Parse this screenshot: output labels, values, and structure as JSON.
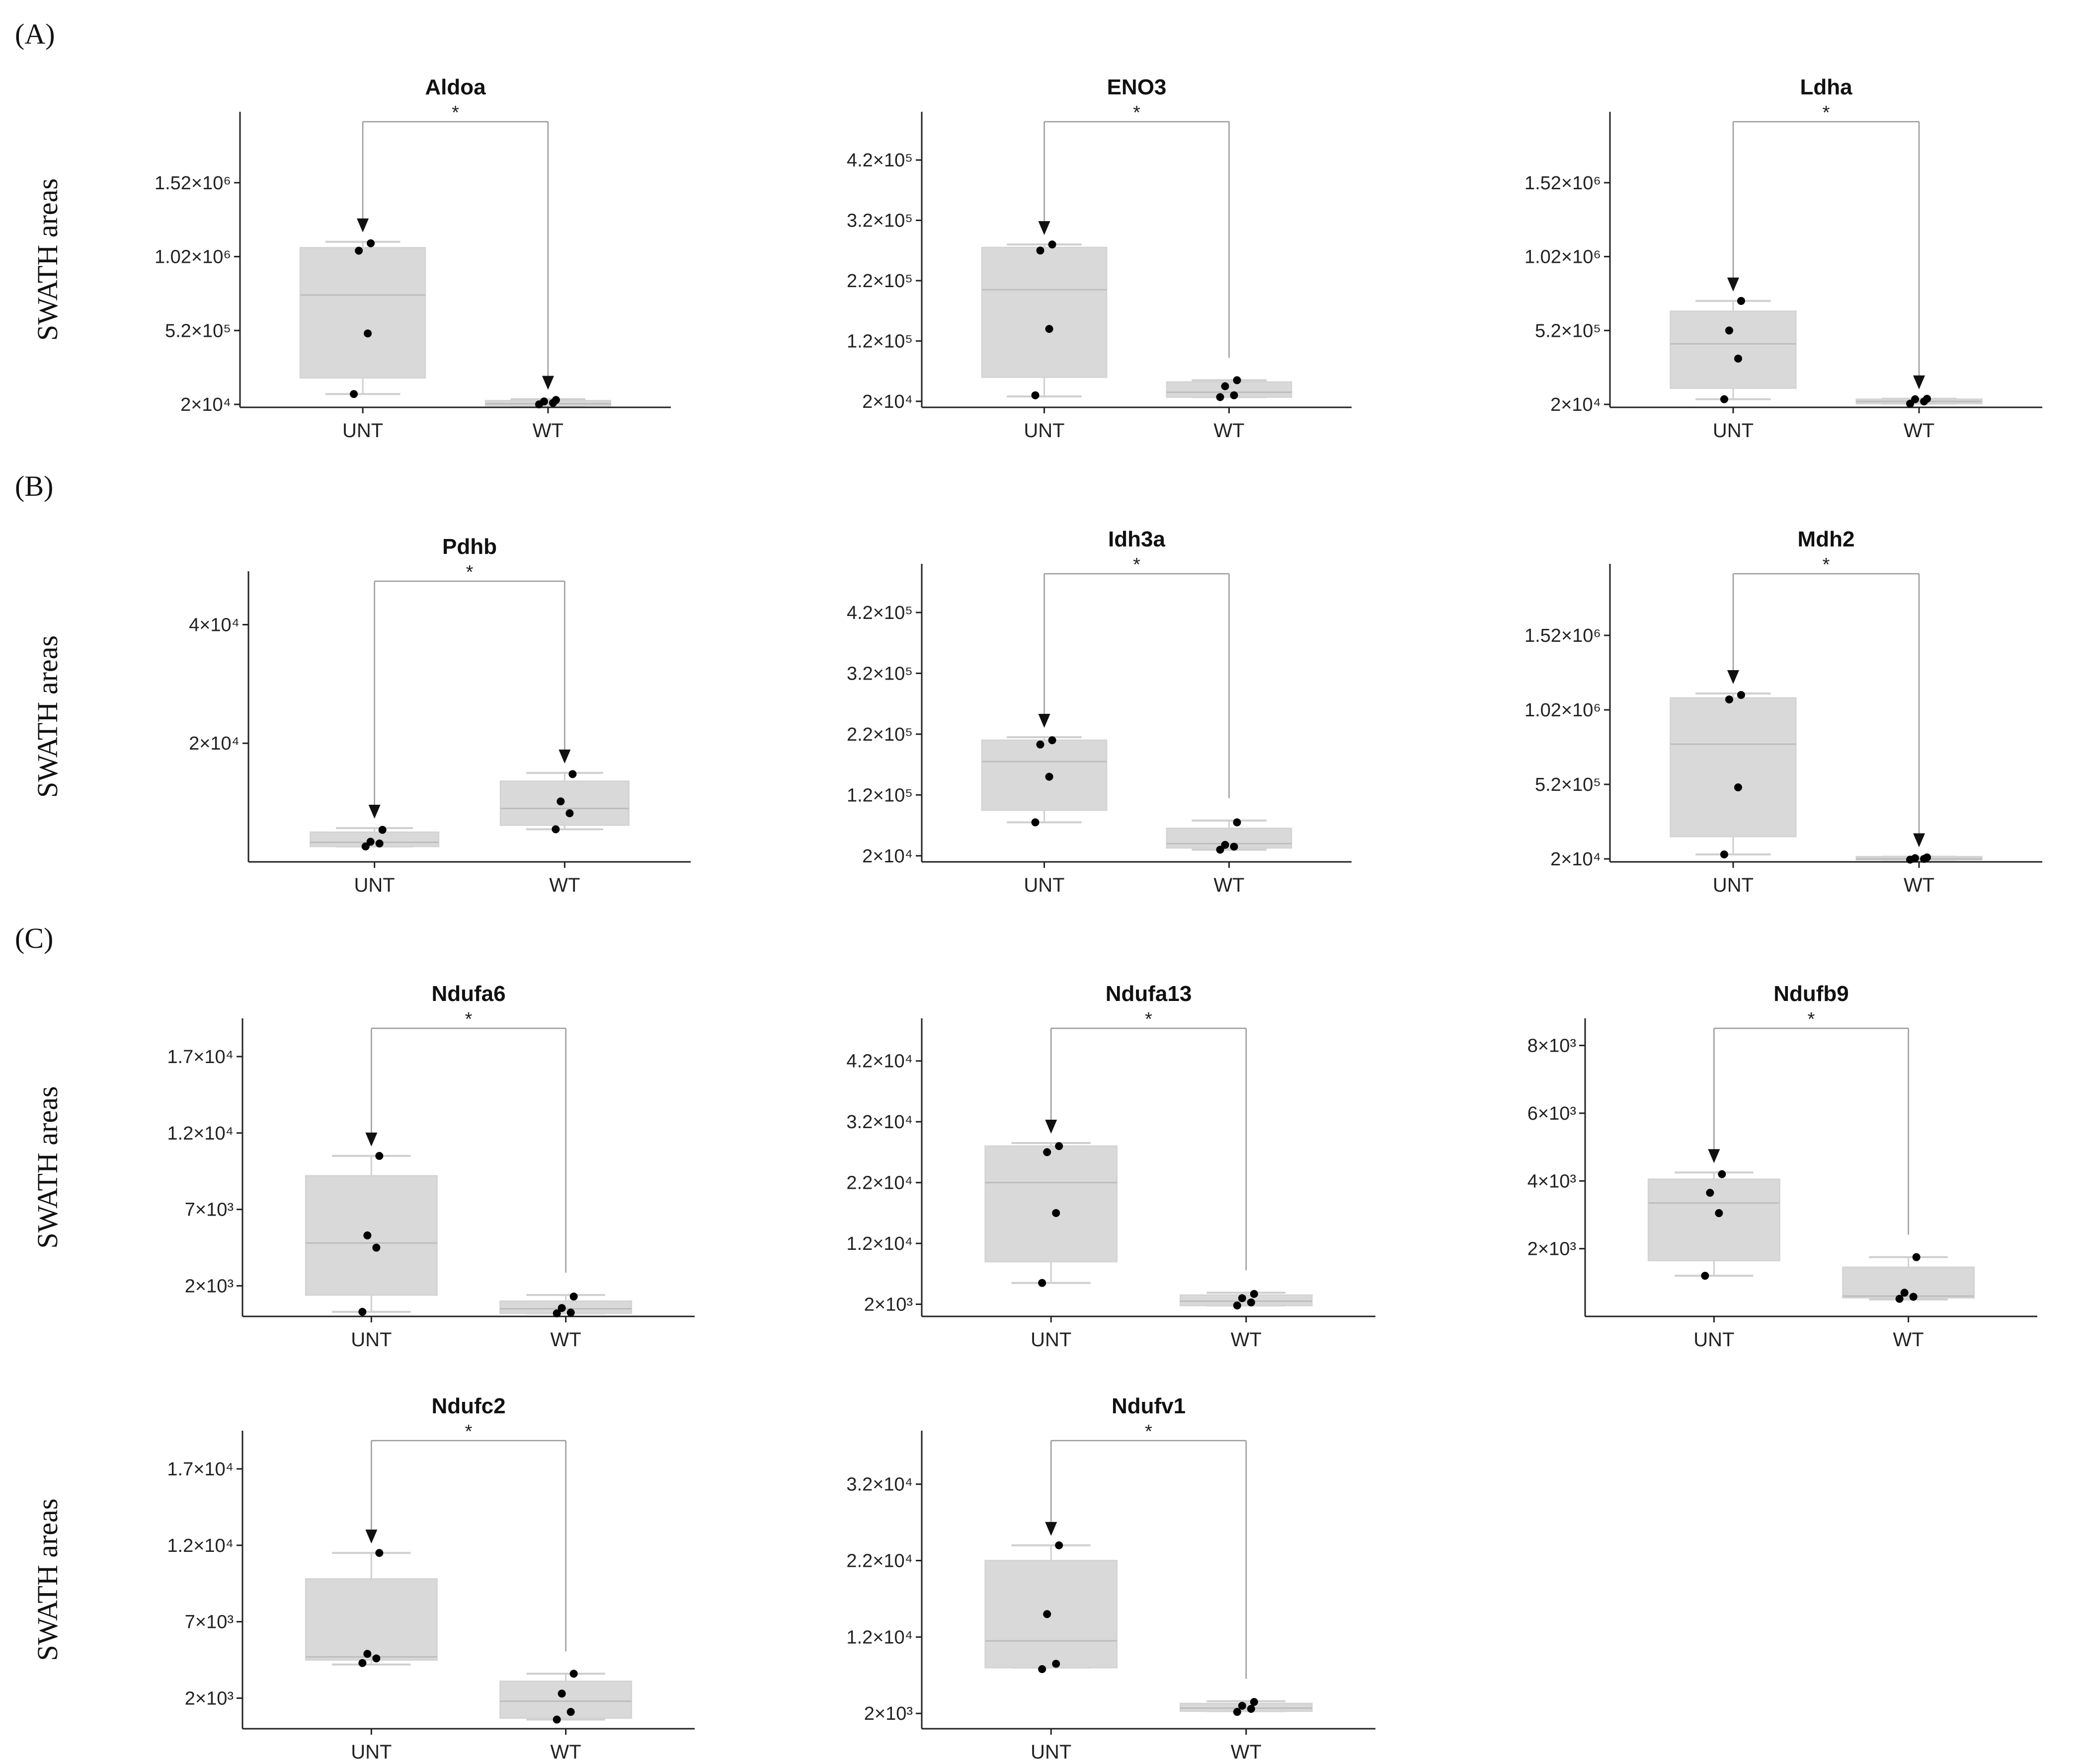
{
  "panel_labels": [
    "(A)",
    "(B)",
    "(C)"
  ],
  "colors": {
    "box_fill": "#d9d9d9",
    "box_edge": "#d4d4d4",
    "median": "#bdbdbd",
    "whisker": "#cfcfcf",
    "point": "#000000",
    "axis": "#222222",
    "bracket": "#9a9a9a"
  },
  "chart_data": [
    {
      "type": "box",
      "title": "Aldoa",
      "ylabel": "SWATH areas",
      "categories": [
        "UNT",
        "WT"
      ],
      "yticks": [
        {
          "value": 20000,
          "label": "2×10⁴"
        },
        {
          "value": 520000,
          "label": "5.2×10⁵"
        },
        {
          "value": 1020000,
          "label": "1.02×10⁶"
        },
        {
          "value": 1520000,
          "label": "1.52×10⁶"
        }
      ],
      "ylim": [
        0,
        2000000
      ],
      "groups": [
        {
          "name": "UNT",
          "q1": 200000,
          "median": 760000,
          "q3": 1080000,
          "whisker_low": 90000,
          "whisker_high": 1120000,
          "points": [
            90000,
            500000,
            1060000,
            1110000
          ]
        },
        {
          "name": "WT",
          "q1": 12000,
          "median": 25000,
          "q3": 45000,
          "whisker_low": 12000,
          "whisker_high": 55000,
          "points": [
            20000,
            30000,
            40000,
            50000
          ]
        }
      ],
      "significance": "*",
      "arrows": [
        "UNT",
        "WT"
      ]
    },
    {
      "type": "box",
      "title": "ENO3",
      "ylabel": "",
      "categories": [
        "UNT",
        "WT"
      ],
      "yticks": [
        {
          "value": 20000,
          "label": "2×10⁴"
        },
        {
          "value": 120000,
          "label": "1.2×10⁵"
        },
        {
          "value": 220000,
          "label": "2.2×10⁵"
        },
        {
          "value": 320000,
          "label": "3.2×10⁵"
        },
        {
          "value": 420000,
          "label": "4.2×10⁵"
        }
      ],
      "ylim": [
        10000,
        500000
      ],
      "groups": [
        {
          "name": "UNT",
          "q1": 60000,
          "median": 205000,
          "q3": 275000,
          "whisker_low": 28000,
          "whisker_high": 280000,
          "points": [
            30000,
            140000,
            270000,
            280000
          ]
        },
        {
          "name": "WT",
          "q1": 27000,
          "median": 35000,
          "q3": 52000,
          "whisker_low": 27000,
          "whisker_high": 55000,
          "points": [
            27000,
            30000,
            45000,
            55000
          ]
        }
      ],
      "significance": "*",
      "arrows": [
        "UNT"
      ]
    },
    {
      "type": "box",
      "title": "Ldha",
      "ylabel": "",
      "categories": [
        "UNT",
        "WT"
      ],
      "yticks": [
        {
          "value": 20000,
          "label": "2×10⁴"
        },
        {
          "value": 520000,
          "label": "5.2×10⁵"
        },
        {
          "value": 1020000,
          "label": "1.02×10⁶"
        },
        {
          "value": 1520000,
          "label": "1.52×10⁶"
        }
      ],
      "ylim": [
        0,
        2000000
      ],
      "groups": [
        {
          "name": "UNT",
          "q1": 130000,
          "median": 430000,
          "q3": 650000,
          "whisker_low": 55000,
          "whisker_high": 720000,
          "points": [
            55000,
            330000,
            520000,
            720000
          ]
        },
        {
          "name": "WT",
          "q1": 25000,
          "median": 40000,
          "q3": 55000,
          "whisker_low": 25000,
          "whisker_high": 58000,
          "points": [
            25000,
            40000,
            55000,
            58000
          ]
        }
      ],
      "significance": "*",
      "arrows": [
        "UNT",
        "WT"
      ]
    },
    {
      "type": "box",
      "title": "Pdhb",
      "ylabel": "SWATH areas",
      "categories": [
        "UNT",
        "WT"
      ],
      "yticks": [
        {
          "value": 20000,
          "label": "2×10⁴"
        },
        {
          "value": 40000,
          "label": "4×10⁴"
        }
      ],
      "ylim": [
        0,
        49000
      ],
      "groups": [
        {
          "name": "UNT",
          "q1": 2600,
          "median": 3300,
          "q3": 5000,
          "whisker_low": 2600,
          "whisker_high": 5700,
          "points": [
            2600,
            3100,
            3400,
            5400
          ]
        },
        {
          "name": "WT",
          "q1": 6200,
          "median": 9000,
          "q3": 13600,
          "whisker_low": 5500,
          "whisker_high": 15000,
          "points": [
            5500,
            8200,
            10200,
            14800
          ]
        }
      ],
      "significance": "*",
      "arrows": [
        "UNT",
        "WT"
      ]
    },
    {
      "type": "box",
      "title": "Idh3a",
      "ylabel": "",
      "categories": [
        "UNT",
        "WT"
      ],
      "yticks": [
        {
          "value": 20000,
          "label": "2×10⁴"
        },
        {
          "value": 120000,
          "label": "1.2×10⁵"
        },
        {
          "value": 220000,
          "label": "2.2×10⁵"
        },
        {
          "value": 320000,
          "label": "3.2×10⁵"
        },
        {
          "value": 420000,
          "label": "4.2×10⁵"
        }
      ],
      "ylim": [
        10000,
        500000
      ],
      "groups": [
        {
          "name": "UNT",
          "q1": 95000,
          "median": 175000,
          "q3": 210000,
          "whisker_low": 75000,
          "whisker_high": 215000,
          "points": [
            75000,
            150000,
            203000,
            210000
          ]
        },
        {
          "name": "WT",
          "q1": 33000,
          "median": 40000,
          "q3": 65000,
          "whisker_low": 30000,
          "whisker_high": 78000,
          "points": [
            30000,
            35000,
            38000,
            75000
          ]
        }
      ],
      "significance": "*",
      "arrows": [
        "UNT"
      ]
    },
    {
      "type": "box",
      "title": "Mdh2",
      "ylabel": "",
      "categories": [
        "UNT",
        "WT"
      ],
      "yticks": [
        {
          "value": 20000,
          "label": "2×10⁴"
        },
        {
          "value": 520000,
          "label": "5.2×10⁵"
        },
        {
          "value": 1020000,
          "label": "1.02×10⁶"
        },
        {
          "value": 1520000,
          "label": "1.52×10⁶"
        }
      ],
      "ylim": [
        0,
        2000000
      ],
      "groups": [
        {
          "name": "UNT",
          "q1": 170000,
          "median": 790000,
          "q3": 1100000,
          "whisker_low": 50000,
          "whisker_high": 1130000,
          "points": [
            50000,
            500000,
            1090000,
            1120000
          ]
        },
        {
          "name": "WT",
          "q1": 15000,
          "median": 20000,
          "q3": 35000,
          "whisker_low": 15000,
          "whisker_high": 35000,
          "points": [
            15000,
            20000,
            25000,
            30000
          ]
        }
      ],
      "significance": "*",
      "arrows": [
        "UNT",
        "WT"
      ]
    },
    {
      "type": "box",
      "title": "Ndufa6",
      "ylabel": "SWATH areas",
      "categories": [
        "UNT",
        "WT"
      ],
      "yticks": [
        {
          "value": 2000,
          "label": "2×10³"
        },
        {
          "value": 7000,
          "label": "7×10³"
        },
        {
          "value": 12000,
          "label": "1.2×10⁴"
        },
        {
          "value": 17000,
          "label": "1.7×10⁴"
        }
      ],
      "ylim": [
        0,
        19500
      ],
      "groups": [
        {
          "name": "UNT",
          "q1": 1400,
          "median": 4800,
          "q3": 9200,
          "whisker_low": 300,
          "whisker_high": 10500,
          "points": [
            300,
            4500,
            5300,
            10500
          ]
        },
        {
          "name": "WT",
          "q1": 200,
          "median": 500,
          "q3": 1000,
          "whisker_low": 200,
          "whisker_high": 1400,
          "points": [
            200,
            250,
            550,
            1300
          ]
        }
      ],
      "significance": "*",
      "arrows": [
        "UNT"
      ]
    },
    {
      "type": "box",
      "title": "Ndufa13",
      "ylabel": "",
      "categories": [
        "UNT",
        "WT"
      ],
      "yticks": [
        {
          "value": 2000,
          "label": "2×10³"
        },
        {
          "value": 12000,
          "label": "1.2×10⁴"
        },
        {
          "value": 22000,
          "label": "2.2×10⁴"
        },
        {
          "value": 32000,
          "label": "3.2×10⁴"
        },
        {
          "value": 42000,
          "label": "4.2×10⁴"
        }
      ],
      "ylim": [
        0,
        49000
      ],
      "groups": [
        {
          "name": "UNT",
          "q1": 9000,
          "median": 22000,
          "q3": 28000,
          "whisker_low": 5500,
          "whisker_high": 28500,
          "points": [
            5500,
            17000,
            27000,
            28000
          ]
        },
        {
          "name": "WT",
          "q1": 1800,
          "median": 2500,
          "q3": 3500,
          "whisker_low": 1800,
          "whisker_high": 3900,
          "points": [
            1800,
            2300,
            3000,
            3700
          ]
        }
      ],
      "significance": "*",
      "arrows": [
        "UNT"
      ]
    },
    {
      "type": "box",
      "title": "Ndufb9",
      "ylabel": "",
      "categories": [
        "UNT",
        "WT"
      ],
      "yticks": [
        {
          "value": 2000,
          "label": "2×10³"
        },
        {
          "value": 4000,
          "label": "4×10³"
        },
        {
          "value": 6000,
          "label": "6×10³"
        },
        {
          "value": 8000,
          "label": "8×10³"
        }
      ],
      "ylim": [
        0,
        8800
      ],
      "groups": [
        {
          "name": "UNT",
          "q1": 1650,
          "median": 3350,
          "q3": 4050,
          "whisker_low": 1200,
          "whisker_high": 4250,
          "points": [
            1200,
            3050,
            3650,
            4200
          ]
        },
        {
          "name": "WT",
          "q1": 550,
          "median": 600,
          "q3": 1450,
          "whisker_low": 500,
          "whisker_high": 1750,
          "points": [
            520,
            580,
            700,
            1750
          ]
        }
      ],
      "significance": "*",
      "arrows": [
        "UNT"
      ]
    },
    {
      "type": "box",
      "title": "Ndufc2",
      "ylabel": "SWATH areas",
      "categories": [
        "UNT",
        "WT"
      ],
      "yticks": [
        {
          "value": 2000,
          "label": "2×10³"
        },
        {
          "value": 7000,
          "label": "7×10³"
        },
        {
          "value": 12000,
          "label": "1.2×10⁴"
        },
        {
          "value": 17000,
          "label": "1.7×10⁴"
        }
      ],
      "ylim": [
        0,
        19500
      ],
      "groups": [
        {
          "name": "UNT",
          "q1": 4500,
          "median": 4700,
          "q3": 9800,
          "whisker_low": 4200,
          "whisker_high": 11500,
          "points": [
            4300,
            4600,
            4900,
            11500
          ]
        },
        {
          "name": "WT",
          "q1": 700,
          "median": 1800,
          "q3": 3100,
          "whisker_low": 600,
          "whisker_high": 3600,
          "points": [
            600,
            1100,
            2300,
            3600
          ]
        }
      ],
      "significance": "*",
      "arrows": [
        "UNT"
      ]
    },
    {
      "type": "box",
      "title": "Ndufv1",
      "ylabel": "",
      "categories": [
        "UNT",
        "WT"
      ],
      "yticks": [
        {
          "value": 2000,
          "label": "2×10³"
        },
        {
          "value": 12000,
          "label": "1.2×10⁴"
        },
        {
          "value": 22000,
          "label": "2.2×10⁴"
        },
        {
          "value": 32000,
          "label": "3.2×10⁴"
        }
      ],
      "ylim": [
        0,
        39000
      ],
      "groups": [
        {
          "name": "UNT",
          "q1": 8000,
          "median": 11500,
          "q3": 22000,
          "whisker_low": 8000,
          "whisker_high": 24000,
          "points": [
            7800,
            8500,
            15000,
            24000
          ]
        },
        {
          "name": "WT",
          "q1": 2300,
          "median": 2700,
          "q3": 3300,
          "whisker_low": 2300,
          "whisker_high": 3600,
          "points": [
            2200,
            2600,
            3000,
            3500
          ]
        }
      ],
      "significance": "*",
      "arrows": [
        "UNT"
      ]
    }
  ]
}
